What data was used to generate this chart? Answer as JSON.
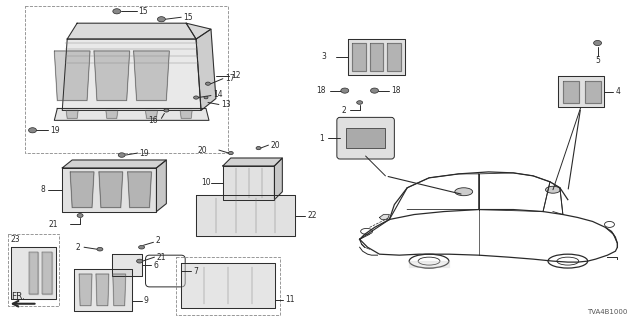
{
  "background_color": "#ffffff",
  "line_color": "#2a2a2a",
  "diagram_code": "TVA4B1000",
  "fr_label": "FR.",
  "fig_width": 6.4,
  "fig_height": 3.2,
  "dpi": 100,
  "lc": "#2a2a2a",
  "lw": 0.7
}
